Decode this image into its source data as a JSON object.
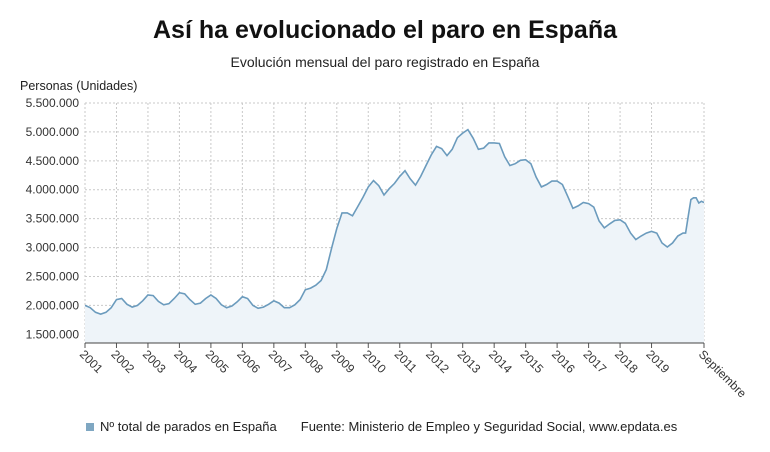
{
  "title": "Así ha evolucionado el paro en España",
  "subtitle": "Evolución mensual del paro registrado en España",
  "footer": {
    "legend_label": "Nº total de parados en España",
    "source": "Fuente: Ministerio de Empleo y Seguridad Social, www.epdata.es"
  },
  "colors": {
    "line": "#6b9bbd",
    "area": "#eef4f9",
    "grid": "#c9c9c9",
    "swatch": "#7fa7c2"
  },
  "chart_data": {
    "type": "area",
    "title": "Así ha evolucionado el paro en España",
    "subtitle": "Evolución mensual del paro registrado en España",
    "ylabel": "Personas (Unidades)",
    "xlabel": "",
    "ylim": [
      1350000,
      5500000
    ],
    "yticks": [
      1500000,
      2000000,
      2500000,
      3000000,
      3500000,
      4000000,
      4500000,
      5000000,
      5500000
    ],
    "ytick_labels": [
      "1.500.000",
      "2.000.000",
      "2.500.000",
      "3.000.000",
      "3.500.000",
      "4.000.000",
      "4.500.000",
      "5.000.000",
      "5.500.000"
    ],
    "xlim": [
      "2001-01",
      "2020-09"
    ],
    "xtick_labels": [
      "2001",
      "2002",
      "2003",
      "2004",
      "2005",
      "2006",
      "2007",
      "2008",
      "2009",
      "2010",
      "2011",
      "2012",
      "2013",
      "2014",
      "2015",
      "2016",
      "2017",
      "2018",
      "2019",
      "Septiembre"
    ],
    "grid": true,
    "legend_position": "bottom-left",
    "series": [
      {
        "name": "Nº total de parados en España",
        "points": [
          [
            "2001-01",
            2000000
          ],
          [
            "2001-03",
            1960000
          ],
          [
            "2001-05",
            1880000
          ],
          [
            "2001-07",
            1850000
          ],
          [
            "2001-09",
            1880000
          ],
          [
            "2001-11",
            1960000
          ],
          [
            "2002-01",
            2100000
          ],
          [
            "2002-03",
            2120000
          ],
          [
            "2002-05",
            2020000
          ],
          [
            "2002-07",
            1970000
          ],
          [
            "2002-09",
            2000000
          ],
          [
            "2002-11",
            2080000
          ],
          [
            "2003-01",
            2180000
          ],
          [
            "2003-03",
            2170000
          ],
          [
            "2003-05",
            2070000
          ],
          [
            "2003-07",
            2010000
          ],
          [
            "2003-09",
            2030000
          ],
          [
            "2003-11",
            2120000
          ],
          [
            "2004-01",
            2220000
          ],
          [
            "2004-03",
            2200000
          ],
          [
            "2004-05",
            2100000
          ],
          [
            "2004-07",
            2020000
          ],
          [
            "2004-09",
            2040000
          ],
          [
            "2004-11",
            2120000
          ],
          [
            "2005-01",
            2180000
          ],
          [
            "2005-03",
            2120000
          ],
          [
            "2005-05",
            2010000
          ],
          [
            "2005-07",
            1960000
          ],
          [
            "2005-09",
            1990000
          ],
          [
            "2005-11",
            2060000
          ],
          [
            "2006-01",
            2150000
          ],
          [
            "2006-03",
            2120000
          ],
          [
            "2006-05",
            2000000
          ],
          [
            "2006-07",
            1950000
          ],
          [
            "2006-09",
            1970000
          ],
          [
            "2006-11",
            2020000
          ],
          [
            "2007-01",
            2080000
          ],
          [
            "2007-03",
            2040000
          ],
          [
            "2007-05",
            1960000
          ],
          [
            "2007-07",
            1960000
          ],
          [
            "2007-09",
            2010000
          ],
          [
            "2007-11",
            2100000
          ],
          [
            "2008-01",
            2270000
          ],
          [
            "2008-03",
            2300000
          ],
          [
            "2008-05",
            2350000
          ],
          [
            "2008-07",
            2430000
          ],
          [
            "2008-09",
            2620000
          ],
          [
            "2008-11",
            2990000
          ],
          [
            "2009-01",
            3330000
          ],
          [
            "2009-03",
            3600000
          ],
          [
            "2009-05",
            3600000
          ],
          [
            "2009-07",
            3550000
          ],
          [
            "2009-09",
            3710000
          ],
          [
            "2009-11",
            3870000
          ],
          [
            "2010-01",
            4050000
          ],
          [
            "2010-03",
            4160000
          ],
          [
            "2010-05",
            4070000
          ],
          [
            "2010-07",
            3910000
          ],
          [
            "2010-09",
            4020000
          ],
          [
            "2010-11",
            4110000
          ],
          [
            "2011-01",
            4230000
          ],
          [
            "2011-03",
            4330000
          ],
          [
            "2011-05",
            4190000
          ],
          [
            "2011-07",
            4080000
          ],
          [
            "2011-09",
            4230000
          ],
          [
            "2011-11",
            4420000
          ],
          [
            "2012-01",
            4600000
          ],
          [
            "2012-03",
            4750000
          ],
          [
            "2012-05",
            4710000
          ],
          [
            "2012-07",
            4590000
          ],
          [
            "2012-09",
            4700000
          ],
          [
            "2012-11",
            4900000
          ],
          [
            "2013-01",
            4980000
          ],
          [
            "2013-03",
            5040000
          ],
          [
            "2013-05",
            4890000
          ],
          [
            "2013-07",
            4700000
          ],
          [
            "2013-09",
            4720000
          ],
          [
            "2013-11",
            4810000
          ],
          [
            "2014-01",
            4810000
          ],
          [
            "2014-03",
            4800000
          ],
          [
            "2014-05",
            4570000
          ],
          [
            "2014-07",
            4420000
          ],
          [
            "2014-09",
            4450000
          ],
          [
            "2014-11",
            4510000
          ],
          [
            "2015-01",
            4520000
          ],
          [
            "2015-03",
            4450000
          ],
          [
            "2015-05",
            4220000
          ],
          [
            "2015-07",
            4050000
          ],
          [
            "2015-09",
            4090000
          ],
          [
            "2015-11",
            4150000
          ],
          [
            "2016-01",
            4150000
          ],
          [
            "2016-03",
            4090000
          ],
          [
            "2016-05",
            3890000
          ],
          [
            "2016-07",
            3680000
          ],
          [
            "2016-09",
            3720000
          ],
          [
            "2016-11",
            3780000
          ],
          [
            "2017-01",
            3760000
          ],
          [
            "2017-03",
            3700000
          ],
          [
            "2017-05",
            3460000
          ],
          [
            "2017-07",
            3340000
          ],
          [
            "2017-09",
            3410000
          ],
          [
            "2017-11",
            3470000
          ],
          [
            "2018-01",
            3480000
          ],
          [
            "2018-03",
            3420000
          ],
          [
            "2018-05",
            3250000
          ],
          [
            "2018-07",
            3140000
          ],
          [
            "2018-09",
            3200000
          ],
          [
            "2018-11",
            3250000
          ],
          [
            "2019-01",
            3280000
          ],
          [
            "2019-03",
            3250000
          ],
          [
            "2019-05",
            3080000
          ],
          [
            "2019-07",
            3010000
          ],
          [
            "2019-09",
            3080000
          ],
          [
            "2019-11",
            3200000
          ],
          [
            "2020-01",
            3250000
          ],
          [
            "2020-02",
            3250000
          ],
          [
            "2020-03",
            3550000
          ],
          [
            "2020-04",
            3830000
          ],
          [
            "2020-05",
            3860000
          ],
          [
            "2020-06",
            3860000
          ],
          [
            "2020-07",
            3770000
          ],
          [
            "2020-08",
            3800000
          ],
          [
            "2020-09",
            3780000
          ]
        ]
      }
    ]
  }
}
